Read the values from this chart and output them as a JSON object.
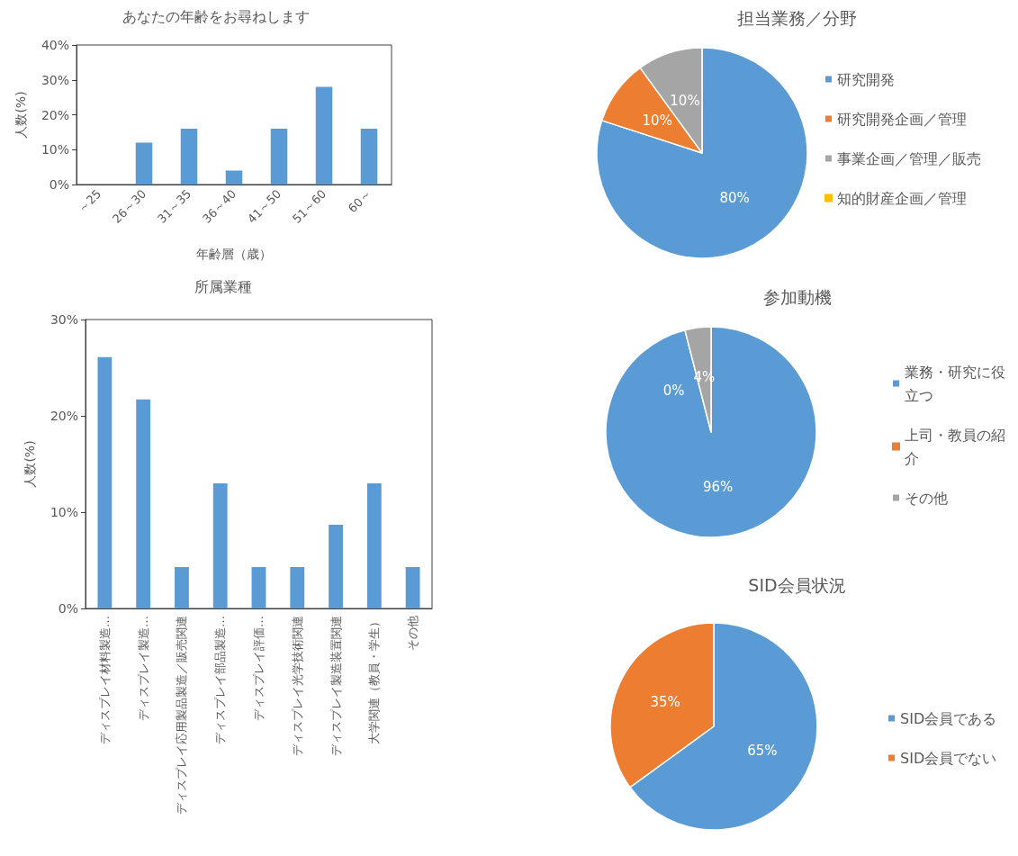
{
  "chart_data": [
    {
      "type": "bar",
      "title": "あなたの年齢をお尋ねします",
      "xlabel": "年齢層（歳）",
      "ylabel": "人数(%)",
      "categories": [
        "～25",
        "26～30",
        "31～35",
        "36～40",
        "41～50",
        "51～60",
        "60～"
      ],
      "values": [
        0,
        12,
        16,
        4,
        16,
        28,
        16
      ],
      "color": "#5b9bd5",
      "ylim": [
        0,
        40
      ],
      "yticks": [
        {
          "value": 0,
          "label": "0%"
        },
        {
          "value": 10,
          "label": "10%"
        },
        {
          "value": 20,
          "label": "20%"
        },
        {
          "value": 30,
          "label": "30%"
        },
        {
          "value": 40,
          "label": "40%"
        }
      ],
      "grid": false
    },
    {
      "type": "bar",
      "title": "所属業種",
      "ylabel": "人数(%)",
      "categories": [
        "ディスプレイ材料製造…",
        "ディスプレイ製造…",
        "ディスプレイ応用製品製造／販売関連",
        "ディスプレイ部品製造…",
        "ディスプレイ評価…",
        "ディスプレイ光学技術関連",
        "ディスプレイ製造装置関連",
        "大学関連（教員・学生）",
        "その他"
      ],
      "values": [
        26.1,
        21.7,
        4.3,
        13.0,
        4.3,
        4.3,
        8.7,
        13.0,
        4.3
      ],
      "color": "#5b9bd5",
      "ylim": [
        0,
        30
      ],
      "yticks": [
        {
          "value": 0,
          "label": "0%"
        },
        {
          "value": 10,
          "label": "10%"
        },
        {
          "value": 20,
          "label": "20%"
        },
        {
          "value": 30,
          "label": "30%"
        }
      ],
      "grid": false
    },
    {
      "type": "pie",
      "title": "担当業務／分野",
      "categories": [
        "研究開発",
        "研究開発企画／管理",
        "事業企画／管理／販売",
        "知的財産企画／管理"
      ],
      "values": [
        80,
        10,
        10,
        0
      ],
      "colors": [
        "#5b9bd5",
        "#ed7d31",
        "#a5a5a5",
        "#ffc000"
      ],
      "value_labels": [
        "80%",
        "10%",
        "10%",
        null
      ],
      "legend": "right"
    },
    {
      "type": "pie",
      "title": "参加動機",
      "categories": [
        "業務・研究に役立つ",
        "上司・教員の紹介",
        "その他"
      ],
      "values": [
        96,
        0,
        4
      ],
      "colors": [
        "#5b9bd5",
        "#ed7d31",
        "#a5a5a5"
      ],
      "value_labels": [
        "96%",
        "0%",
        "4%"
      ],
      "legend": "right"
    },
    {
      "type": "pie",
      "title": "SID会員状況",
      "categories": [
        "SID会員である",
        "SID会員でない"
      ],
      "values": [
        65,
        35
      ],
      "colors": [
        "#5b9bd5",
        "#ed7d31"
      ],
      "value_labels": [
        "65%",
        "35%"
      ],
      "legend": "right"
    }
  ]
}
